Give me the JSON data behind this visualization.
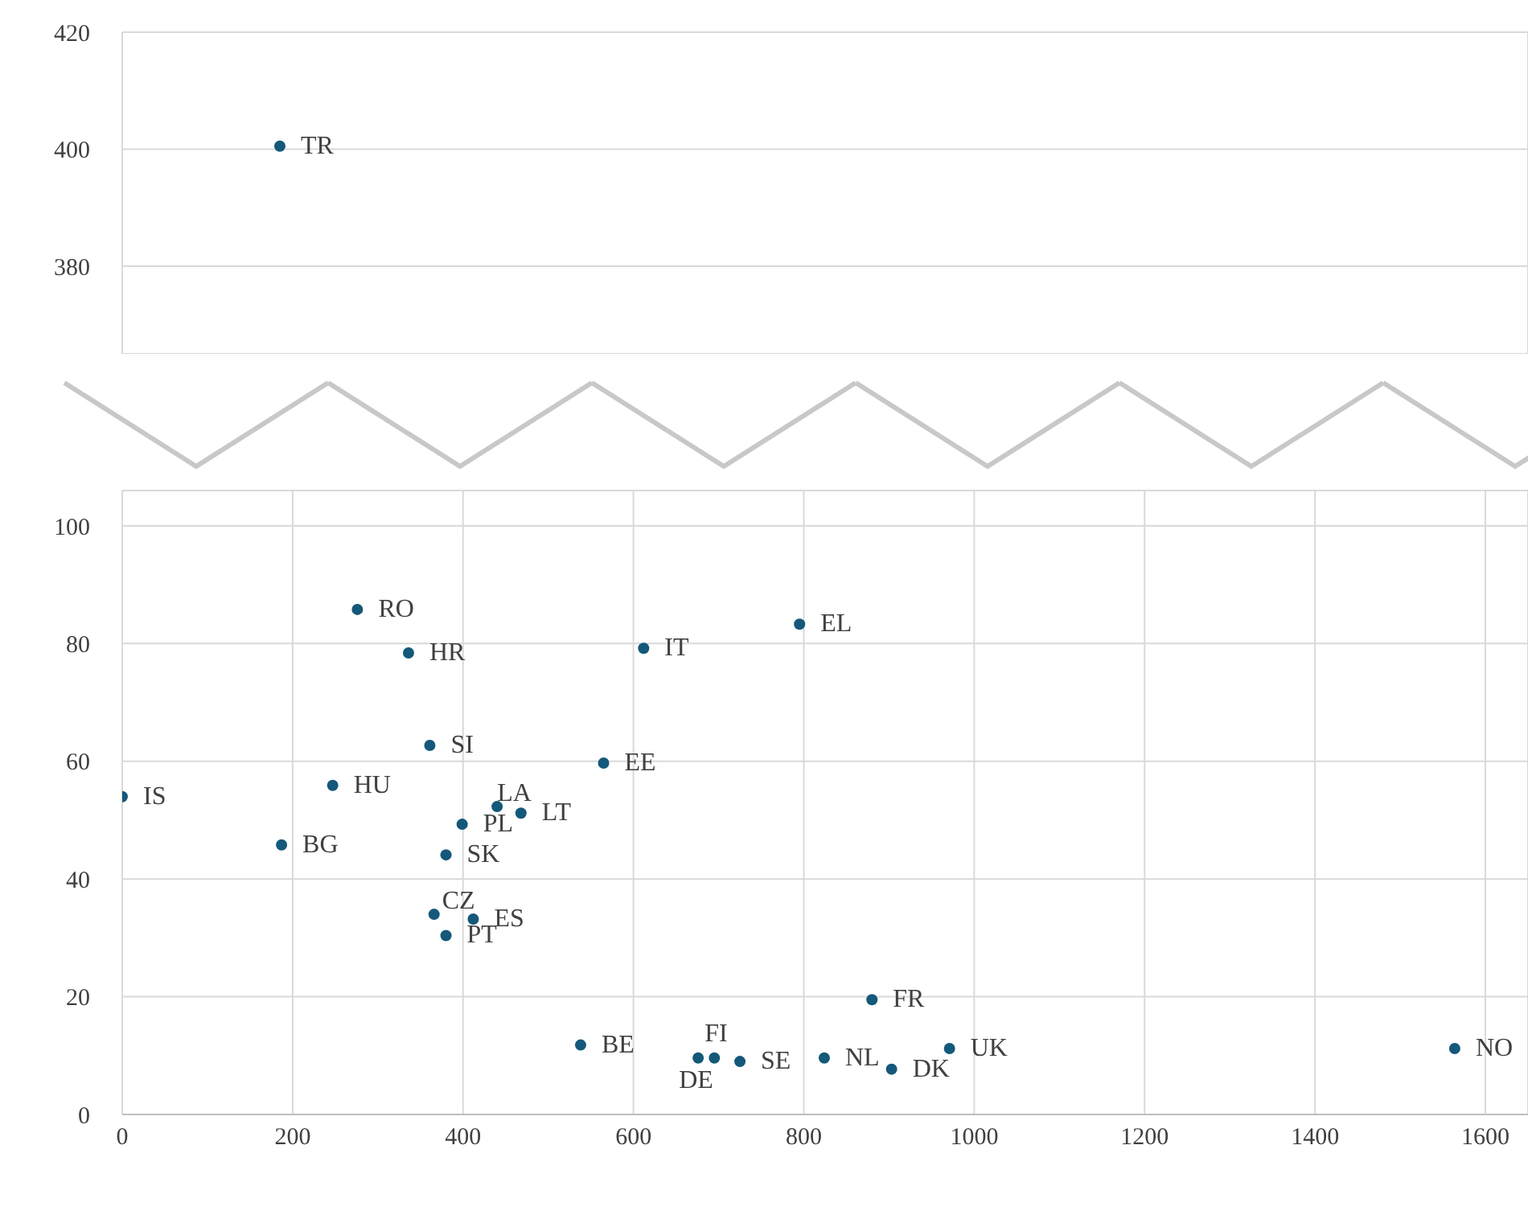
{
  "chart_data": [
    {
      "type": "scatter",
      "x": [
        185
      ],
      "values": [
        400.5
      ],
      "color": "#14587a",
      "marker": "circle",
      "xlim": [
        0,
        1650
      ],
      "xticks": [
        0,
        200,
        400,
        600,
        800,
        1000,
        1200,
        1400,
        1600
      ],
      "ylim": [
        365,
        420
      ],
      "yticks": [
        380,
        400,
        420
      ],
      "grid": true,
      "tick_labels": "y",
      "annotations": [
        {
          "text": "TR",
          "x": 185,
          "y": 400.5
        }
      ]
    },
    {
      "type": "scatter",
      "x": [
        0,
        187,
        276,
        247,
        336,
        361,
        366,
        380,
        380,
        399,
        412,
        440,
        468,
        538,
        565,
        612,
        676,
        695,
        725,
        795,
        824,
        880,
        903,
        971,
        1564
      ],
      "values": [
        54.0,
        45.8,
        85.8,
        55.9,
        78.4,
        62.7,
        34.0,
        44.1,
        30.4,
        49.3,
        33.2,
        52.3,
        51.2,
        11.8,
        59.7,
        79.2,
        9.6,
        9.6,
        9.0,
        83.3,
        9.6,
        19.5,
        7.7,
        11.2,
        11.2
      ],
      "color": "#14587a",
      "marker": "circle",
      "xlim": [
        0,
        1650
      ],
      "xticks": [
        0,
        200,
        400,
        600,
        800,
        1000,
        1200,
        1400,
        1600
      ],
      "ylim": [
        0,
        106
      ],
      "yticks": [
        0,
        20,
        40,
        60,
        80,
        100
      ],
      "grid": true,
      "annotations": [
        {
          "text": "IS",
          "x": 0,
          "y": 54.0
        },
        {
          "text": "BG",
          "x": 187,
          "y": 45.8
        },
        {
          "text": "RO",
          "x": 276,
          "y": 85.8
        },
        {
          "text": "HU",
          "x": 247,
          "y": 55.9
        },
        {
          "text": "HR",
          "x": 336,
          "y": 78.4
        },
        {
          "text": "SI",
          "x": 361,
          "y": 62.7
        },
        {
          "text": "CZ",
          "x": 366,
          "y": 34.0
        },
        {
          "text": "SK",
          "x": 380,
          "y": 44.1
        },
        {
          "text": "PT",
          "x": 380,
          "y": 30.4
        },
        {
          "text": "PL",
          "x": 399,
          "y": 49.3
        },
        {
          "text": "ES",
          "x": 412,
          "y": 33.2
        },
        {
          "text": "LA",
          "x": 440,
          "y": 52.3
        },
        {
          "text": "LT",
          "x": 468,
          "y": 51.2
        },
        {
          "text": "BE",
          "x": 538,
          "y": 11.8
        },
        {
          "text": "EE",
          "x": 565,
          "y": 59.7
        },
        {
          "text": "IT",
          "x": 612,
          "y": 79.2
        },
        {
          "text": "DE",
          "x": 676,
          "y": 9.6
        },
        {
          "text": "FI",
          "x": 695,
          "y": 9.6
        },
        {
          "text": "SE",
          "x": 725,
          "y": 9.0
        },
        {
          "text": "EL",
          "x": 795,
          "y": 83.3
        },
        {
          "text": "NL",
          "x": 824,
          "y": 9.6
        },
        {
          "text": "FR",
          "x": 880,
          "y": 19.5
        },
        {
          "text": "DK",
          "x": 903,
          "y": 7.7
        },
        {
          "text": "UK",
          "x": 971,
          "y": 11.2
        },
        {
          "text": "NO",
          "x": 1564,
          "y": 11.2
        }
      ]
    }
  ]
}
